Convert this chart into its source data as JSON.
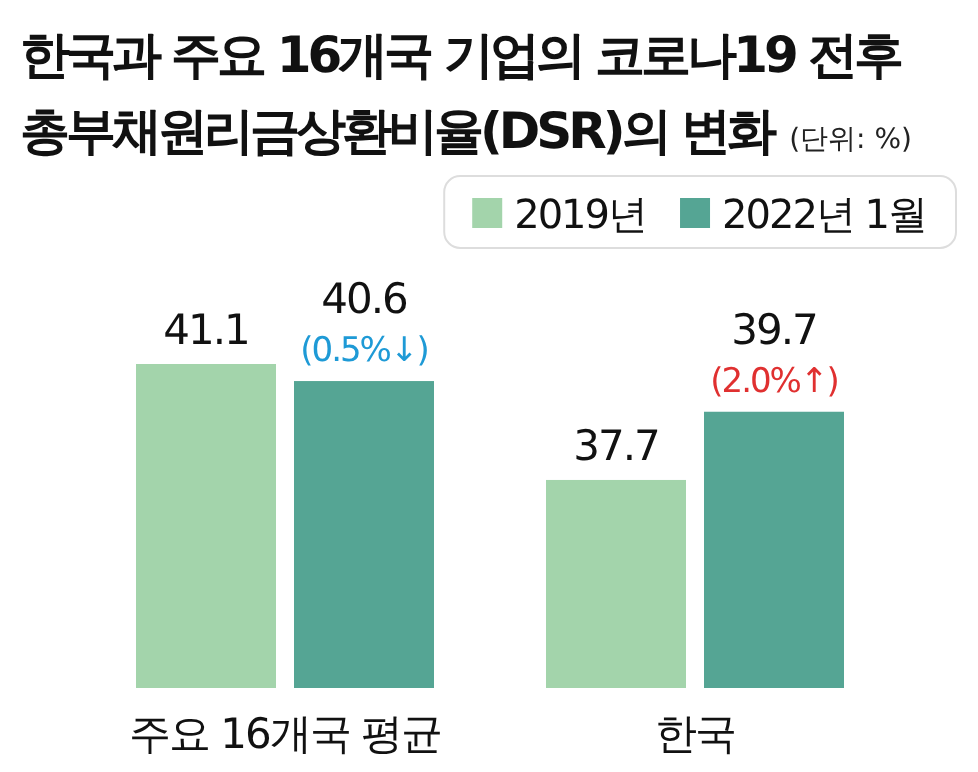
{
  "chart_data": {
    "type": "bar",
    "title": "한국과 주요 16개국 기업의 코로나19 전후 총부채원리금상환비율(DSR)의 변화",
    "subtitle": "(단위: %)",
    "categories": [
      "주요 16개국 평균",
      "한국"
    ],
    "series": [
      {
        "name": "2019년",
        "color": "#a3d4ab",
        "values": [
          41.1,
          37.7
        ]
      },
      {
        "name": "2022년 1월",
        "color": "#55a594",
        "values": [
          40.6,
          39.7
        ]
      }
    ],
    "ylim": [
      31.6,
      41.1
    ],
    "data_labels": true,
    "legend": "top right",
    "annotations": [
      {
        "text": "(0.5%↓)",
        "x": "주요 16개국 평균",
        "y": 40.6
      },
      {
        "text": "(2.0%↑)",
        "x": "한국",
        "y": 39.7
      }
    ]
  }
}
